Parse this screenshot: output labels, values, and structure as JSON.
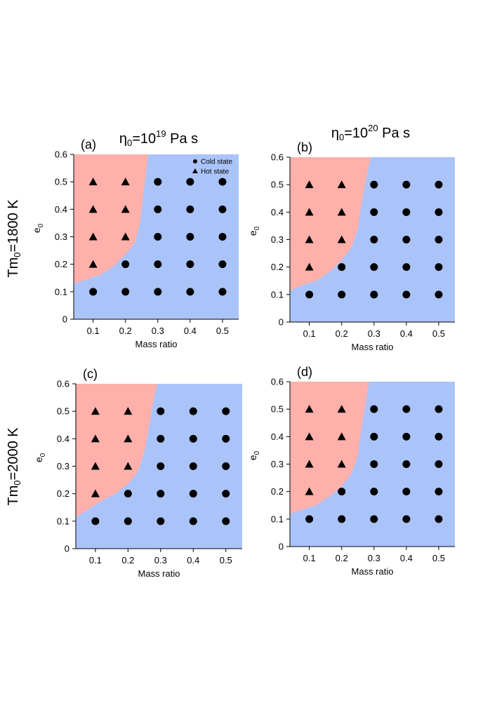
{
  "figure": {
    "col_headers": [
      {
        "prefix": "η",
        "sub": "0",
        "mid": "=10",
        "sup": "19",
        "suffix": " Pa s"
      },
      {
        "prefix": "η",
        "sub": "0",
        "mid": "=10",
        "sup": "20",
        "suffix": " Pa s"
      }
    ],
    "row_headers": [
      {
        "prefix": "Tm",
        "sub": "0",
        "suffix": "=1800 K"
      },
      {
        "prefix": "Tm",
        "sub": "0",
        "suffix": "=2000 K"
      }
    ],
    "legend": {
      "cold": "Cold state",
      "hot": "Hot state"
    },
    "colors": {
      "hot_region": "#ffb0aa",
      "cold_region": "#aac4fa",
      "marker": "#000000"
    }
  },
  "chart_data": [
    {
      "panel": "(a)",
      "type": "scatter",
      "xlabel": "Mass ratio",
      "ylabel": "e",
      "ylabel_sub": "0",
      "xlim": [
        0.04,
        0.55
      ],
      "ylim": [
        0,
        0.6
      ],
      "xticks": [
        "0.1",
        "0.2",
        "0.3",
        "0.4",
        "0.5"
      ],
      "yticks": [
        "0",
        "0.1",
        "0.2",
        "0.3",
        "0.4",
        "0.5",
        "0.6"
      ],
      "legend": true,
      "boundary": [
        [
          0.04,
          0.13
        ],
        [
          0.08,
          0.145
        ],
        [
          0.12,
          0.16
        ],
        [
          0.16,
          0.19
        ],
        [
          0.2,
          0.235
        ],
        [
          0.23,
          0.28
        ],
        [
          0.245,
          0.35
        ],
        [
          0.255,
          0.45
        ],
        [
          0.265,
          0.55
        ],
        [
          0.27,
          0.6
        ]
      ],
      "hot": [
        [
          0.1,
          0.2
        ],
        [
          0.1,
          0.3
        ],
        [
          0.1,
          0.4
        ],
        [
          0.1,
          0.5
        ],
        [
          0.2,
          0.3
        ],
        [
          0.2,
          0.4
        ],
        [
          0.2,
          0.5
        ]
      ],
      "cold": [
        [
          0.1,
          0.1
        ],
        [
          0.2,
          0.1
        ],
        [
          0.3,
          0.1
        ],
        [
          0.4,
          0.1
        ],
        [
          0.5,
          0.1
        ],
        [
          0.2,
          0.2
        ],
        [
          0.3,
          0.2
        ],
        [
          0.4,
          0.2
        ],
        [
          0.5,
          0.2
        ],
        [
          0.3,
          0.3
        ],
        [
          0.4,
          0.3
        ],
        [
          0.5,
          0.3
        ],
        [
          0.3,
          0.4
        ],
        [
          0.4,
          0.4
        ],
        [
          0.5,
          0.4
        ],
        [
          0.3,
          0.5
        ],
        [
          0.4,
          0.5
        ],
        [
          0.5,
          0.5
        ]
      ]
    },
    {
      "panel": "(b)",
      "type": "scatter",
      "xlabel": "Mass ratio",
      "ylabel": "e",
      "ylabel_sub": "0",
      "xlim": [
        0.04,
        0.55
      ],
      "ylim": [
        0,
        0.6
      ],
      "xticks": [
        "0.1",
        "0.2",
        "0.3",
        "0.4",
        "0.5"
      ],
      "yticks": [
        "0",
        "0.1",
        "0.2",
        "0.3",
        "0.4",
        "0.5",
        "0.6"
      ],
      "legend": false,
      "boundary": [
        [
          0.04,
          0.115
        ],
        [
          0.08,
          0.135
        ],
        [
          0.12,
          0.15
        ],
        [
          0.16,
          0.18
        ],
        [
          0.2,
          0.225
        ],
        [
          0.23,
          0.27
        ],
        [
          0.25,
          0.34
        ],
        [
          0.26,
          0.42
        ],
        [
          0.275,
          0.52
        ],
        [
          0.29,
          0.6
        ]
      ],
      "hot": [
        [
          0.1,
          0.2
        ],
        [
          0.1,
          0.3
        ],
        [
          0.1,
          0.4
        ],
        [
          0.1,
          0.5
        ],
        [
          0.2,
          0.3
        ],
        [
          0.2,
          0.4
        ],
        [
          0.2,
          0.5
        ]
      ],
      "cold": [
        [
          0.1,
          0.1
        ],
        [
          0.2,
          0.1
        ],
        [
          0.3,
          0.1
        ],
        [
          0.4,
          0.1
        ],
        [
          0.5,
          0.1
        ],
        [
          0.2,
          0.2
        ],
        [
          0.3,
          0.2
        ],
        [
          0.4,
          0.2
        ],
        [
          0.5,
          0.2
        ],
        [
          0.3,
          0.3
        ],
        [
          0.4,
          0.3
        ],
        [
          0.5,
          0.3
        ],
        [
          0.3,
          0.4
        ],
        [
          0.4,
          0.4
        ],
        [
          0.5,
          0.4
        ],
        [
          0.3,
          0.5
        ],
        [
          0.4,
          0.5
        ],
        [
          0.5,
          0.5
        ]
      ]
    },
    {
      "panel": "(c)",
      "type": "scatter",
      "xlabel": "Mass ratio",
      "ylabel": "e",
      "ylabel_sub": "0",
      "xlim": [
        0.04,
        0.55
      ],
      "ylim": [
        0,
        0.6
      ],
      "xticks": [
        "0.1",
        "0.2",
        "0.3",
        "0.4",
        "0.5"
      ],
      "yticks": [
        "0",
        "0.1",
        "0.2",
        "0.3",
        "0.4",
        "0.5",
        "0.6"
      ],
      "legend": false,
      "boundary": [
        [
          0.04,
          0.115
        ],
        [
          0.08,
          0.145
        ],
        [
          0.12,
          0.175
        ],
        [
          0.16,
          0.2
        ],
        [
          0.2,
          0.235
        ],
        [
          0.23,
          0.28
        ],
        [
          0.25,
          0.35
        ],
        [
          0.265,
          0.45
        ],
        [
          0.28,
          0.55
        ],
        [
          0.29,
          0.6
        ]
      ],
      "hot": [
        [
          0.1,
          0.2
        ],
        [
          0.1,
          0.3
        ],
        [
          0.1,
          0.4
        ],
        [
          0.1,
          0.5
        ],
        [
          0.2,
          0.3
        ],
        [
          0.2,
          0.4
        ],
        [
          0.2,
          0.5
        ]
      ],
      "cold": [
        [
          0.1,
          0.1
        ],
        [
          0.2,
          0.1
        ],
        [
          0.3,
          0.1
        ],
        [
          0.4,
          0.1
        ],
        [
          0.5,
          0.1
        ],
        [
          0.2,
          0.2
        ],
        [
          0.3,
          0.2
        ],
        [
          0.4,
          0.2
        ],
        [
          0.5,
          0.2
        ],
        [
          0.3,
          0.3
        ],
        [
          0.4,
          0.3
        ],
        [
          0.5,
          0.3
        ],
        [
          0.3,
          0.4
        ],
        [
          0.4,
          0.4
        ],
        [
          0.5,
          0.4
        ],
        [
          0.3,
          0.5
        ],
        [
          0.4,
          0.5
        ],
        [
          0.5,
          0.5
        ]
      ]
    },
    {
      "panel": "(d)",
      "type": "scatter",
      "xlabel": "Mass ratio",
      "ylabel": "e",
      "ylabel_sub": "0",
      "xlim": [
        0.04,
        0.55
      ],
      "ylim": [
        0,
        0.6
      ],
      "xticks": [
        "0.1",
        "0.2",
        "0.3",
        "0.4",
        "0.5"
      ],
      "yticks": [
        "0",
        "0.1",
        "0.2",
        "0.3",
        "0.4",
        "0.5",
        "0.6"
      ],
      "legend": false,
      "boundary": [
        [
          0.04,
          0.12
        ],
        [
          0.08,
          0.135
        ],
        [
          0.12,
          0.15
        ],
        [
          0.16,
          0.18
        ],
        [
          0.2,
          0.22
        ],
        [
          0.23,
          0.265
        ],
        [
          0.25,
          0.33
        ],
        [
          0.26,
          0.42
        ],
        [
          0.275,
          0.53
        ],
        [
          0.285,
          0.6
        ]
      ],
      "hot": [
        [
          0.1,
          0.2
        ],
        [
          0.1,
          0.3
        ],
        [
          0.1,
          0.4
        ],
        [
          0.1,
          0.5
        ],
        [
          0.2,
          0.3
        ],
        [
          0.2,
          0.4
        ],
        [
          0.2,
          0.5
        ]
      ],
      "cold": [
        [
          0.1,
          0.1
        ],
        [
          0.2,
          0.1
        ],
        [
          0.3,
          0.1
        ],
        [
          0.4,
          0.1
        ],
        [
          0.5,
          0.1
        ],
        [
          0.2,
          0.2
        ],
        [
          0.3,
          0.2
        ],
        [
          0.4,
          0.2
        ],
        [
          0.5,
          0.2
        ],
        [
          0.3,
          0.3
        ],
        [
          0.4,
          0.3
        ],
        [
          0.5,
          0.3
        ],
        [
          0.3,
          0.4
        ],
        [
          0.4,
          0.4
        ],
        [
          0.5,
          0.4
        ],
        [
          0.3,
          0.5
        ],
        [
          0.4,
          0.5
        ],
        [
          0.5,
          0.5
        ]
      ]
    }
  ]
}
